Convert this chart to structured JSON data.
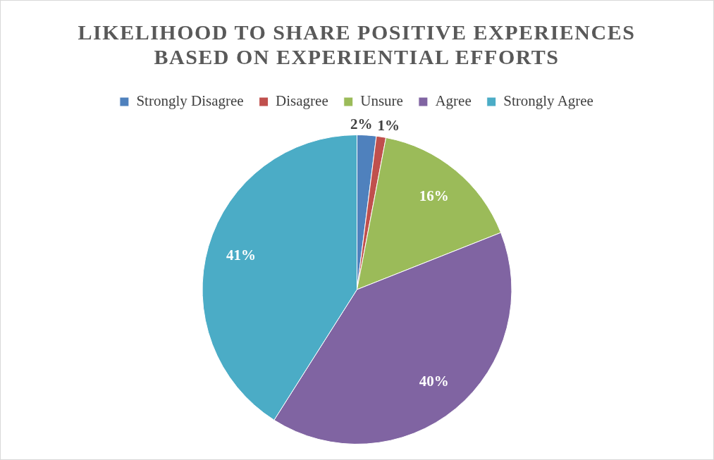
{
  "chart_data": {
    "type": "pie",
    "title": "LIKELIHOOD TO SHARE POSITIVE EXPERIENCES BASED ON EXPERIENTIAL EFFORTS",
    "categories": [
      "Strongly Disagree",
      "Disagree",
      "Unsure",
      "Agree",
      "Strongly Agree"
    ],
    "values": [
      2,
      1,
      16,
      40,
      41
    ],
    "value_labels": [
      "2%",
      "1%",
      "16%",
      "40%",
      "41%"
    ],
    "colors": [
      "#4f81bd",
      "#c0504d",
      "#9bbb59",
      "#8064a2",
      "#4bacc6"
    ],
    "legend": "top"
  }
}
